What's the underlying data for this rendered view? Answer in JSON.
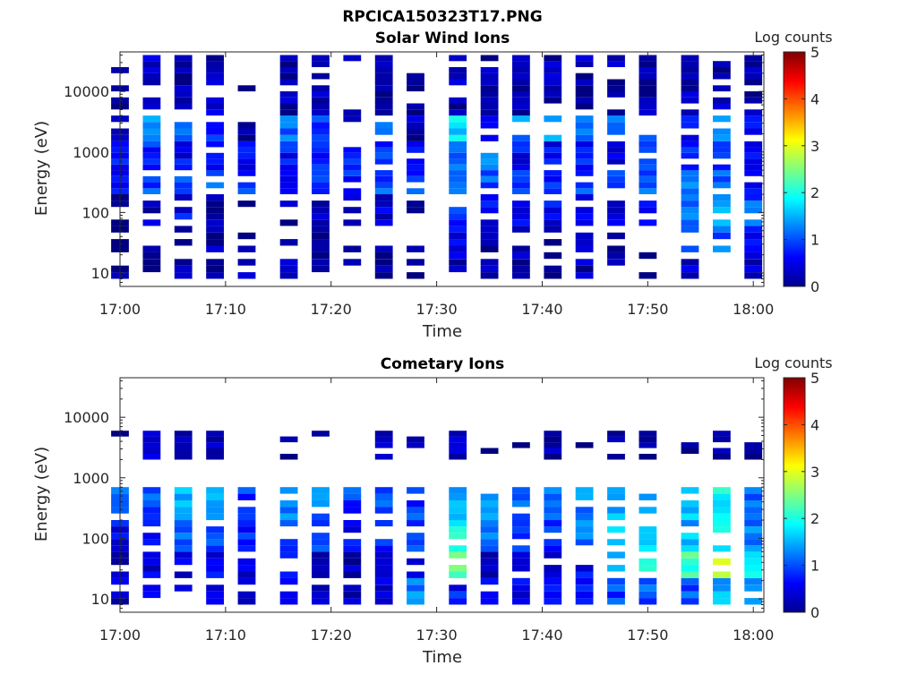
{
  "figure_title": "RPCICA150323T17.PNG",
  "colorbar": {
    "label": "Log counts",
    "min": 0,
    "max": 5,
    "ticks": [
      "0",
      "1",
      "2",
      "3",
      "4",
      "5"
    ],
    "colormap": "jet"
  },
  "chart_data": [
    {
      "type": "heatmap",
      "title": "Solar Wind Ions",
      "xlabel": "Time",
      "ylabel": "Energy (eV)",
      "xticks": [
        "17:00",
        "17:10",
        "17:20",
        "17:30",
        "17:40",
        "17:50",
        "18:00"
      ],
      "yticks": [
        "10",
        "100",
        "1000",
        "10000"
      ],
      "xlim": [
        "17:00",
        "18:01"
      ],
      "ylim": [
        6,
        45000
      ],
      "yscale": "log",
      "clim": [
        0,
        5
      ],
      "grid": false,
      "time_columns": [
        "17:00",
        "17:03",
        "17:06",
        "17:09",
        "17:12",
        "17:16",
        "17:19",
        "17:22",
        "17:25",
        "17:28",
        "17:32",
        "17:35",
        "17:38",
        "17:41",
        "17:44",
        "17:47",
        "17:50",
        "17:54",
        "17:57",
        "18:00"
      ],
      "bands": [
        {
          "emin": 8,
          "emax": 22,
          "values": [
            0.3,
            0.2,
            0.2,
            0.2,
            0.2,
            0.2,
            0.2,
            0.1,
            0.2,
            0.1,
            0.3,
            0.2,
            0.2,
            0.1,
            0.2,
            0.1,
            0.2,
            0.3,
            0.4,
            0.3
          ]
        },
        {
          "emin": 22,
          "emax": 60,
          "values": [
            0.0,
            0.1,
            0.0,
            0.2,
            0.0,
            0.1,
            0.2,
            0.0,
            0.1,
            0.0,
            0.6,
            0.2,
            0.1,
            0.0,
            0.2,
            0.0,
            0.1,
            0.9,
            1.1,
            0.6
          ]
        },
        {
          "emin": 60,
          "emax": 200,
          "values": [
            0.0,
            0.3,
            0.6,
            0.2,
            0.0,
            0.2,
            0.4,
            0.3,
            0.4,
            0.2,
            0.9,
            0.6,
            0.5,
            0.6,
            0.6,
            0.5,
            0.8,
            1.1,
            1.3,
            1.0
          ]
        },
        {
          "emin": 200,
          "emax": 500,
          "values": [
            0.5,
            1.0,
            1.1,
            1.0,
            0.9,
            0.6,
            0.9,
            0.8,
            1.0,
            0.9,
            1.2,
            1.0,
            0.9,
            0.8,
            0.9,
            0.8,
            1.0,
            1.2,
            1.0,
            0.7
          ]
        },
        {
          "emin": 500,
          "emax": 1500,
          "values": [
            0.6,
            0.8,
            0.6,
            0.7,
            0.6,
            0.7,
            0.8,
            0.7,
            0.8,
            0.7,
            1.0,
            1.2,
            0.6,
            0.6,
            0.7,
            0.6,
            0.8,
            0.9,
            0.8,
            0.6
          ]
        },
        {
          "emin": 1500,
          "emax": 4000,
          "values": [
            0.2,
            1.3,
            1.2,
            0.8,
            0.0,
            1.1,
            0.9,
            0.0,
            1.0,
            0.3,
            1.7,
            0.4,
            1.3,
            1.5,
            1.2,
            1.2,
            1.1,
            0.6,
            1.4,
            0.6
          ]
        },
        {
          "emin": 4000,
          "emax": 40000,
          "values": [
            0.1,
            0.3,
            0.2,
            0.3,
            0.1,
            0.2,
            0.2,
            0.1,
            0.2,
            0.1,
            0.2,
            0.2,
            0.2,
            0.2,
            0.2,
            0.2,
            0.2,
            0.3,
            0.2,
            0.2
          ]
        }
      ]
    },
    {
      "type": "heatmap",
      "title": "Cometary Ions",
      "xlabel": "Time",
      "ylabel": "Energy (eV)",
      "xticks": [
        "17:00",
        "17:10",
        "17:20",
        "17:30",
        "17:40",
        "17:50",
        "18:00"
      ],
      "yticks": [
        "10",
        "100",
        "1000",
        "10000"
      ],
      "xlim": [
        "17:00",
        "18:01"
      ],
      "ylim": [
        6,
        45000
      ],
      "yscale": "log",
      "clim": [
        0,
        5
      ],
      "grid": false,
      "time_columns": [
        "17:00",
        "17:03",
        "17:06",
        "17:09",
        "17:12",
        "17:16",
        "17:19",
        "17:22",
        "17:25",
        "17:28",
        "17:32",
        "17:35",
        "17:38",
        "17:41",
        "17:44",
        "17:47",
        "17:50",
        "17:54",
        "17:57",
        "18:00"
      ],
      "bands": [
        {
          "emin": 8,
          "emax": 22,
          "values": [
            0.4,
            0.6,
            0.6,
            0.4,
            0.5,
            0.6,
            0.4,
            0.3,
            0.4,
            1.2,
            0.7,
            0.5,
            0.5,
            0.6,
            0.8,
            0.9,
            1.0,
            1.0,
            1.4,
            1.1
          ]
        },
        {
          "emin": 22,
          "emax": 60,
          "values": [
            0.3,
            0.5,
            0.5,
            0.6,
            0.4,
            0.5,
            0.3,
            0.2,
            0.3,
            0.6,
            2.3,
            0.3,
            0.2,
            0.4,
            0.6,
            1.6,
            2.0,
            2.2,
            2.8,
            1.8
          ]
        },
        {
          "emin": 60,
          "emax": 200,
          "values": [
            0.6,
            0.8,
            1.2,
            1.0,
            0.8,
            1.0,
            0.9,
            0.6,
            0.7,
            0.8,
            1.9,
            1.1,
            1.0,
            0.9,
            1.2,
            1.6,
            1.7,
            1.5,
            1.9,
            1.3
          ]
        },
        {
          "emin": 200,
          "emax": 700,
          "values": [
            1.2,
            1.0,
            1.6,
            1.3,
            0.9,
            1.2,
            1.2,
            0.9,
            1.1,
            0.9,
            1.6,
            1.3,
            1.2,
            1.1,
            1.3,
            1.4,
            1.3,
            1.6,
            1.9,
            1.1
          ]
        },
        {
          "emin": 2000,
          "emax": 6000,
          "values": [
            0.0,
            0.3,
            0.3,
            0.2,
            0.1,
            0.0,
            0.1,
            0.0,
            0.2,
            0.1,
            0.4,
            0.0,
            0.0,
            0.2,
            0.1,
            0.1,
            0.2,
            0.1,
            0.2,
            0.1
          ]
        }
      ]
    }
  ]
}
